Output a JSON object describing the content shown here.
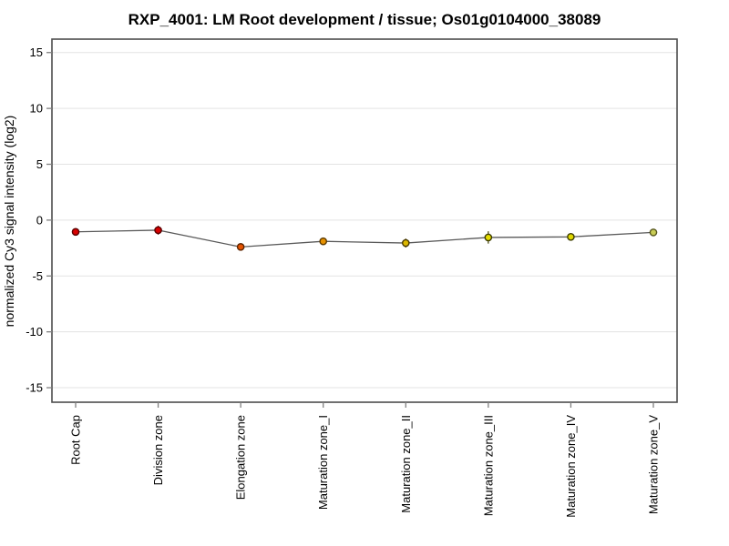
{
  "chart_data": {
    "type": "line",
    "title": "RXP_4001: LM Root development / tissue; Os01g0104000_38089",
    "ylabel": "normalized Cy3 signal intensity (log2)",
    "xlabel": "",
    "categories": [
      "Root Cap",
      "Division zone",
      "Elongation zone",
      "Maturation zone_I",
      "Maturation zone_II",
      "Maturation zone_III",
      "Maturation zone_IV",
      "Maturation zone_V"
    ],
    "series": [
      {
        "name": "normalized Cy3 signal intensity",
        "values": [
          -1.05,
          -0.9,
          -2.4,
          -1.9,
          -2.05,
          -1.55,
          -1.5,
          -1.1
        ],
        "errors": [
          0.15,
          0.4,
          0.3,
          0.25,
          0.4,
          0.55,
          0.25,
          0.1
        ],
        "point_fill_colors": [
          "#d80000",
          "#d80000",
          "#e65300",
          "#e69100",
          "#dcb800",
          "#e6dc00",
          "#e0d800",
          "#c8cc55"
        ],
        "point_border_colors": [
          "#5a0000",
          "#5a0000",
          "#5c2400",
          "#5c3a00",
          "#4a3a00",
          "#3c3c00",
          "#3c3c00",
          "#55551e"
        ]
      }
    ],
    "yticks": [
      -15,
      -10,
      -5,
      0,
      5,
      10,
      15
    ],
    "ylim": [
      -16.3,
      16.2
    ],
    "grid": true,
    "legend": false,
    "colors": {
      "line": "#5a5a5a",
      "grid": "#e3e3e3",
      "frame": "#4d4d4d",
      "tick": "#808080",
      "text": "#000000",
      "background": "#ffffff"
    }
  }
}
